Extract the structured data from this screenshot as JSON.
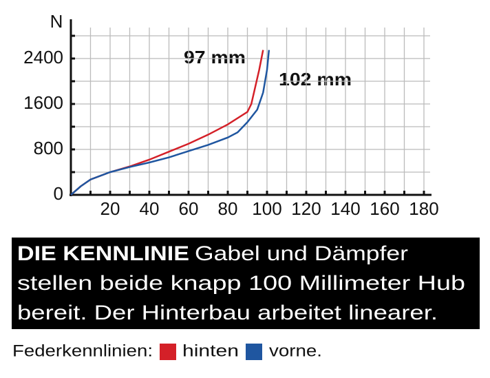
{
  "chart_data": {
    "type": "line",
    "y_label": "N",
    "xlim": [
      0,
      180
    ],
    "ylim": [
      0,
      3000
    ],
    "xticks": [
      20,
      40,
      60,
      80,
      100,
      120,
      140,
      160,
      180
    ],
    "x_minor_ticks": [
      10,
      30,
      50,
      70,
      90,
      110,
      130,
      150,
      170
    ],
    "yticks": [
      0,
      800,
      1600,
      2400
    ],
    "y_minor_ticks": [
      400,
      1200,
      2000,
      2800
    ],
    "grid": true,
    "series": [
      {
        "name": "hinten",
        "color": "#d42028",
        "x": [
          0,
          5,
          10,
          20,
          30,
          40,
          50,
          60,
          70,
          80,
          90,
          92,
          94,
          96,
          98
        ],
        "values": [
          0,
          150,
          270,
          400,
          500,
          620,
          760,
          900,
          1060,
          1240,
          1460,
          1600,
          1900,
          2200,
          2550
        ]
      },
      {
        "name": "vorne.",
        "color": "#1f56a0",
        "x": [
          0,
          5,
          10,
          20,
          30,
          40,
          50,
          60,
          70,
          80,
          85,
          90,
          95,
          98,
          100,
          101
        ],
        "values": [
          0,
          150,
          270,
          400,
          490,
          570,
          660,
          770,
          880,
          1010,
          1100,
          1280,
          1500,
          1800,
          2200,
          2550
        ]
      }
    ],
    "annotations": [
      "97 mm",
      "102 mm"
    ],
    "caption": {
      "heading": "DIE KENNLINIE",
      "lines": [
        "Gabel und Dämpfer",
        "stellen beide knapp 100 Millimeter Hub",
        "bereit. Der Hinterbau arbeitet linearer."
      ]
    },
    "legend_title": "Federkennlinien:"
  }
}
